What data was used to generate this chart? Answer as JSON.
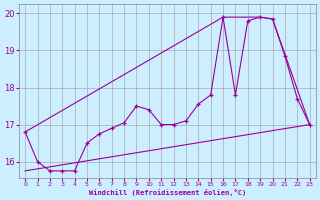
{
  "xlabel": "Windchill (Refroidissement éolien,°C)",
  "ylabel": "",
  "bg_color": "#cceeff",
  "line_color": "#990099",
  "grid_color": "#aaaaaa",
  "xlim_min": -0.5,
  "xlim_max": 23.5,
  "ylim_min": 15.55,
  "ylim_max": 20.25,
  "yticks": [
    16,
    17,
    18,
    19,
    20
  ],
  "xticks": [
    0,
    1,
    2,
    3,
    4,
    5,
    6,
    7,
    8,
    9,
    10,
    11,
    12,
    13,
    14,
    15,
    16,
    17,
    18,
    19,
    20,
    21,
    22,
    23
  ],
  "series1_x": [
    0,
    1,
    2,
    3,
    4,
    5,
    6,
    7,
    8,
    9,
    10,
    11,
    12,
    13,
    14,
    15,
    16,
    17,
    18,
    19,
    20,
    21,
    22,
    23
  ],
  "series1_y": [
    16.8,
    16.0,
    15.75,
    15.75,
    15.75,
    16.5,
    16.75,
    16.9,
    17.05,
    17.5,
    17.4,
    17.0,
    17.0,
    17.1,
    17.55,
    17.8,
    19.9,
    17.8,
    19.8,
    19.9,
    19.85,
    18.85,
    17.7,
    17.0
  ],
  "series2_x": [
    0,
    23
  ],
  "series2_y": [
    15.75,
    17.0
  ],
  "series3_x": [
    0,
    16,
    19,
    20,
    23
  ],
  "series3_y": [
    16.8,
    19.9,
    19.9,
    19.85,
    17.0
  ]
}
